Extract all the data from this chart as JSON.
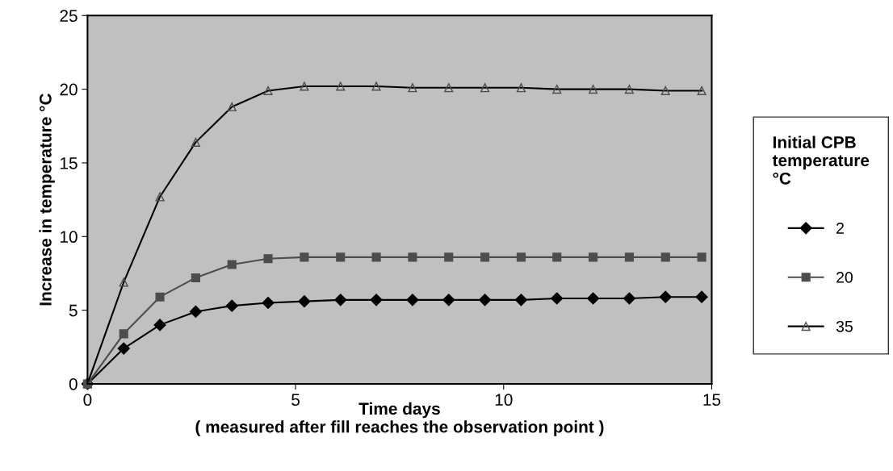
{
  "chart_data": {
    "type": "line",
    "xlabel": "Time days\n( measured after fill reaches the observation point )",
    "ylabel": "Increase in temperature °C",
    "legend_title": "Initial CPB\ntemperature\n°C",
    "x": [
      0,
      0.87,
      1.74,
      2.6,
      3.47,
      4.34,
      5.21,
      6.08,
      6.94,
      7.81,
      8.68,
      9.55,
      10.42,
      11.28,
      12.15,
      13.02,
      13.89,
      14.76
    ],
    "series": [
      {
        "name": "2",
        "color": "#000000",
        "marker": "diamond",
        "values": [
          0,
          2.4,
          4.0,
          4.9,
          5.3,
          5.5,
          5.6,
          5.7,
          5.7,
          5.7,
          5.7,
          5.7,
          5.7,
          5.8,
          5.8,
          5.8,
          5.9,
          5.9
        ]
      },
      {
        "name": "20",
        "color": "#4d4d4d",
        "marker": "square",
        "values": [
          0,
          3.4,
          5.9,
          7.2,
          8.1,
          8.5,
          8.6,
          8.6,
          8.6,
          8.6,
          8.6,
          8.6,
          8.6,
          8.6,
          8.6,
          8.6,
          8.6,
          8.6
        ]
      },
      {
        "name": "35",
        "color": "#000000",
        "marker": "triangle",
        "values": [
          0,
          6.9,
          12.7,
          16.4,
          18.8,
          19.9,
          20.2,
          20.2,
          20.2,
          20.1,
          20.1,
          20.1,
          20.1,
          20.0,
          20.0,
          20.0,
          19.9,
          19.9
        ]
      }
    ],
    "xlim": [
      0,
      15
    ],
    "xticks": [
      0,
      5,
      10,
      15
    ],
    "ylim": [
      0,
      25
    ],
    "yticks": [
      0,
      5,
      10,
      15,
      20,
      25
    ],
    "grid": false,
    "legend": "right",
    "line_style": "solid"
  }
}
